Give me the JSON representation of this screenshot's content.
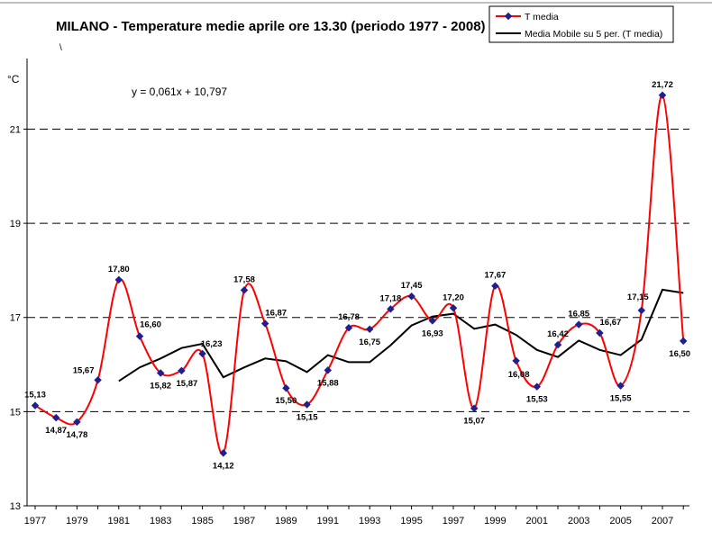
{
  "chart_data": {
    "type": "line",
    "title": "MILANO  - Temperature medie aprile ore 13.30 (periodo 1977 - 2008)",
    "subtitle": "\\",
    "ylabel": "°C",
    "ylim": [
      13,
      22.5
    ],
    "yticks": [
      "13",
      "15",
      "17",
      "19",
      "21"
    ],
    "xticks": [
      "1977",
      "1979",
      "1981",
      "1983",
      "1985",
      "1987",
      "1989",
      "1991",
      "1993",
      "1995",
      "1997",
      "1999",
      "2001",
      "2003",
      "2005",
      "2007"
    ],
    "x": [
      1977,
      1978,
      1979,
      1980,
      1981,
      1982,
      1983,
      1984,
      1985,
      1986,
      1987,
      1988,
      1989,
      1990,
      1991,
      1992,
      1993,
      1994,
      1995,
      1996,
      1997,
      1998,
      1999,
      2000,
      2001,
      2002,
      2003,
      2004,
      2005,
      2006,
      2007,
      2008
    ],
    "grid": "horizontal dashed",
    "annotation": "y = 0,061x + 10,797",
    "legend_position": "top-right",
    "series": [
      {
        "name": "T media",
        "color": "#ff0000",
        "marker_color": "#1f1f8f",
        "values": [
          15.13,
          14.87,
          14.78,
          15.67,
          17.8,
          16.6,
          15.82,
          15.87,
          16.23,
          14.12,
          17.58,
          16.87,
          15.5,
          15.15,
          15.88,
          16.78,
          16.75,
          17.18,
          17.45,
          16.93,
          17.2,
          15.07,
          17.67,
          16.08,
          15.53,
          16.42,
          16.85,
          16.67,
          15.55,
          17.15,
          21.72,
          16.5
        ],
        "labels": [
          "15,13",
          "14,87",
          "14,78",
          "15,67",
          "17,80",
          "16,60",
          "15,82",
          "15,87",
          "16,23",
          "14,12",
          "17,58",
          "16,87",
          "15,50",
          "15,15",
          "15,88",
          "16,78",
          "16,75",
          "17,18",
          "17,45",
          "16,93",
          "17,20",
          "15,07",
          "17,67",
          "16,08",
          "15,53",
          "16,42",
          "16,85",
          "16,67",
          "15,55",
          "17,15",
          "21,72",
          "16,50"
        ]
      },
      {
        "name": "Media Mobile su 5 per. (T media)",
        "color": "#000000",
        "values": [
          null,
          null,
          null,
          null,
          15.65,
          15.94,
          16.13,
          16.35,
          16.44,
          15.73,
          15.94,
          16.13,
          16.07,
          15.84,
          16.2,
          16.05,
          16.05,
          16.41,
          16.83,
          17.02,
          17.08,
          16.76,
          16.85,
          16.63,
          16.31,
          16.16,
          16.51,
          16.31,
          16.2,
          16.53,
          17.59,
          17.52
        ]
      }
    ]
  }
}
